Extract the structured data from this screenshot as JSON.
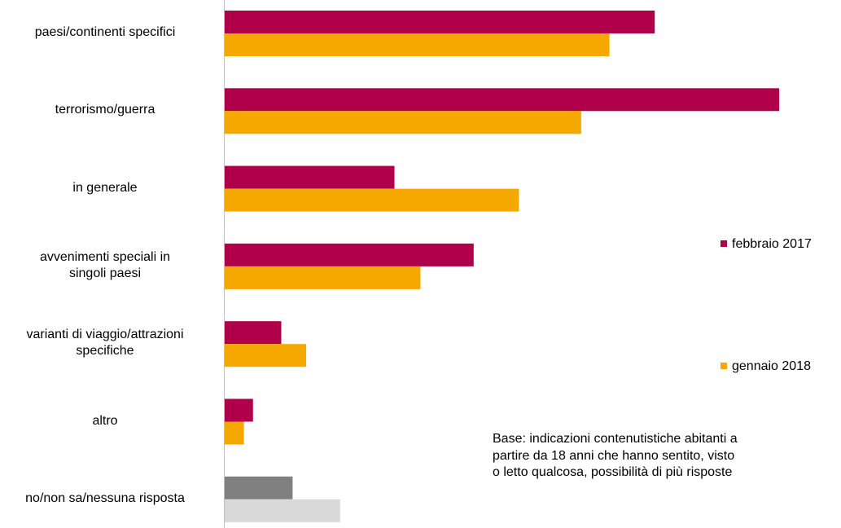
{
  "chart_data": {
    "type": "bar",
    "orientation": "horizontal",
    "categories": [
      "paesi/continenti specifici",
      "terrorismo/guerra",
      "in generale",
      "avvenimenti speciali in singoli paesi",
      "varianti di viaggio/attrazioni specifiche",
      "altro",
      "no/non sa/nessuna risposta"
    ],
    "category_lines": [
      [
        "paesi/continenti specifici"
      ],
      [
        "terrorismo/guerra"
      ],
      [
        "in generale"
      ],
      [
        "avvenimenti speciali in",
        "singoli paesi"
      ],
      [
        "varianti di viaggio/attrazioni",
        "specifiche"
      ],
      [
        "altro"
      ],
      [
        "no/non sa/nessuna risposta"
      ]
    ],
    "series": [
      {
        "name": "febbraio 2017",
        "values": [
          38,
          49,
          15,
          22,
          5,
          2.5,
          6
        ],
        "colors": [
          "#AF0049",
          "#AF0049",
          "#AF0049",
          "#AF0049",
          "#AF0049",
          "#AF0049",
          "#808080"
        ]
      },
      {
        "name": "gennaio 2018",
        "values": [
          34,
          31.5,
          26,
          17.3,
          7.2,
          1.7,
          10.2
        ],
        "colors": [
          "#F5A800",
          "#F5A800",
          "#F5A800",
          "#F5A800",
          "#F5A800",
          "#F5A800",
          "#D9D9D9"
        ]
      }
    ],
    "xlim": [
      0,
      50
    ],
    "grid": false,
    "legend_position": "right",
    "note": [
      "Base: indicazioni contenutistiche abitanti a",
      "partire da 18 anni che hanno sentito, visto",
      "o letto qualcosa, possibilità di più risposte"
    ]
  }
}
